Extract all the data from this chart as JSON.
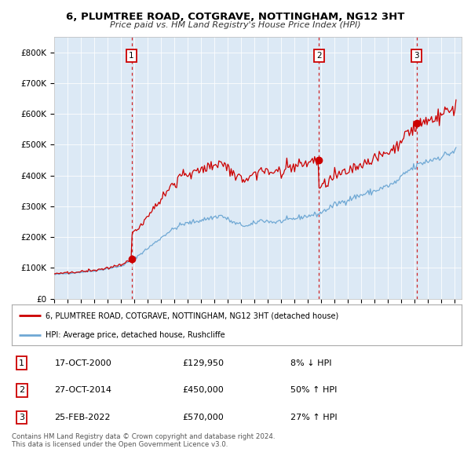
{
  "title": "6, PLUMTREE ROAD, COTGRAVE, NOTTINGHAM, NG12 3HT",
  "subtitle": "Price paid vs. HM Land Registry's House Price Index (HPI)",
  "legend_property": "6, PLUMTREE ROAD, COTGRAVE, NOTTINGHAM, NG12 3HT (detached house)",
  "legend_hpi": "HPI: Average price, detached house, Rushcliffe",
  "table_rows": [
    {
      "num": 1,
      "date_str": "17-OCT-2000",
      "price_str": "£129,950",
      "change": "8% ↓ HPI"
    },
    {
      "num": 2,
      "date_str": "27-OCT-2014",
      "price_str": "£450,000",
      "change": "50% ↑ HPI"
    },
    {
      "num": 3,
      "date_str": "25-FEB-2022",
      "price_str": "£570,000",
      "change": "27% ↑ HPI"
    }
  ],
  "footer": "Contains HM Land Registry data © Crown copyright and database right 2024.\nThis data is licensed under the Open Government Licence v3.0.",
  "bg_color": "#dce9f5",
  "hpi_color": "#6fa8d4",
  "property_color": "#cc0000",
  "vline_color": "#cc0000",
  "ylim": [
    0,
    850000
  ],
  "yticks": [
    0,
    100000,
    200000,
    300000,
    400000,
    500000,
    600000,
    700000,
    800000
  ],
  "xstart": 1995.25,
  "xend": 2025.5,
  "t1_year": 2000.792,
  "t1_price": 129950,
  "t2_year": 2014.833,
  "t2_price": 450000,
  "t3_year": 2022.125,
  "t3_price": 570000
}
